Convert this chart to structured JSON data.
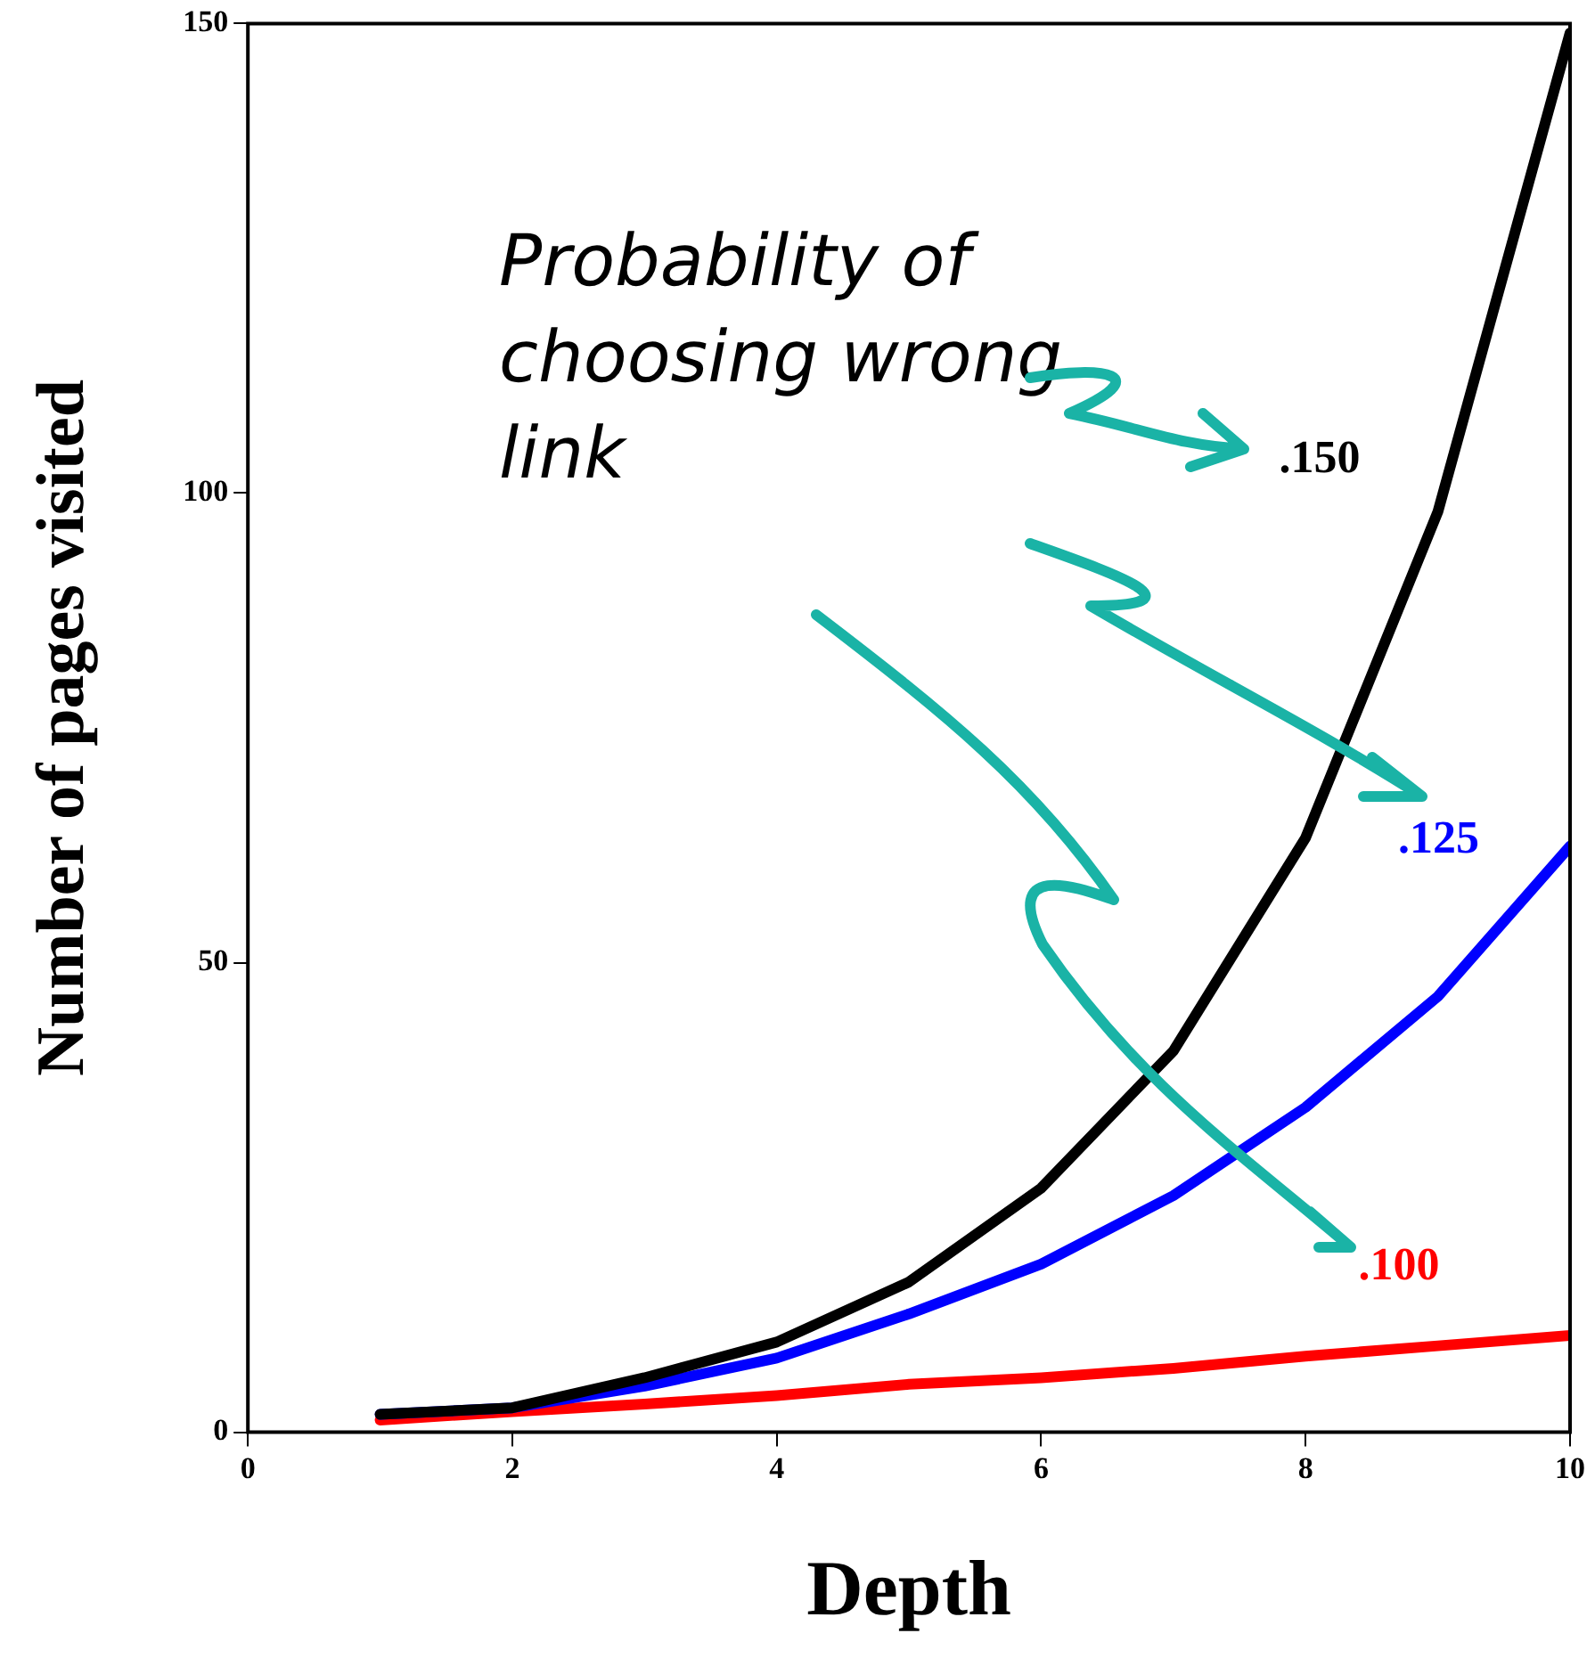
{
  "chart_data": {
    "type": "line",
    "xlabel": "Depth",
    "ylabel": "Number of pages visited",
    "x": [
      1,
      2,
      3,
      4,
      5,
      6,
      7,
      8,
      9,
      10
    ],
    "series": [
      {
        "name": ".150",
        "color": "#000000",
        "values": [
          1.9,
          2.6,
          5.8,
          9.6,
          16,
          26,
          40.6,
          63.3,
          98,
          149
        ]
      },
      {
        "name": ".125",
        "color": "#0000ff",
        "values": [
          1.9,
          2.6,
          4.9,
          7.9,
          12.6,
          17.9,
          25.2,
          34.6,
          46.4,
          62.4
        ]
      },
      {
        "name": ".100",
        "color": "#ff0000",
        "values": [
          1.3,
          2.2,
          3,
          3.9,
          5.1,
          5.8,
          6.8,
          8.1,
          9.2,
          10.3
        ]
      }
    ],
    "xlim": [
      0,
      10
    ],
    "xticks": [
      0,
      2,
      4,
      6,
      8,
      10
    ],
    "ylim": [
      0,
      150
    ],
    "yticks": [
      0,
      50,
      100,
      150
    ],
    "annotations": [
      "Probability of choosing wrong link"
    ],
    "grid": false,
    "legend": false,
    "marker": "none",
    "line_style": "solid"
  }
}
